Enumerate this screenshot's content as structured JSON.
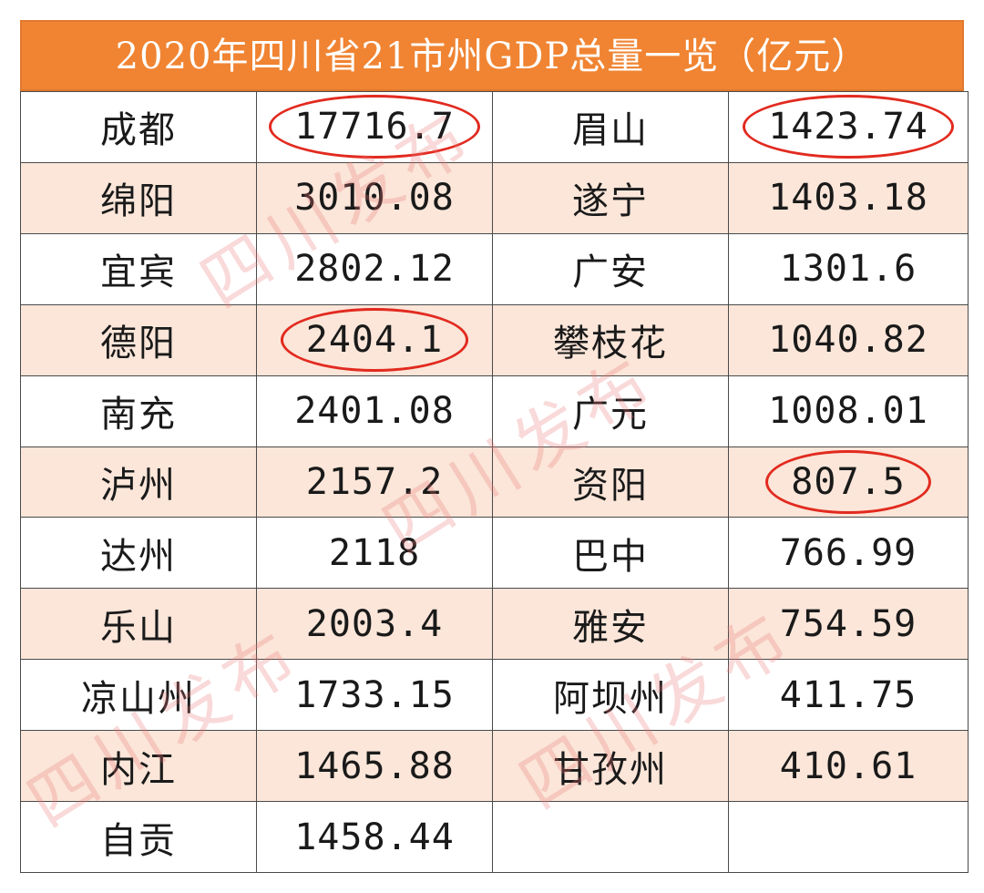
{
  "title": "2020年四川省21市州GDP总量一览（亿元）",
  "highlight_color": "#e22a1f",
  "header_color": "#f08432",
  "stripe_color": "#fbe6d9",
  "watermark": "四川发布",
  "rows": [
    {
      "n1": "成都",
      "v1": "17716.7",
      "c1": true,
      "n2": "眉山",
      "v2": "1423.74",
      "c2": true
    },
    {
      "n1": "绵阳",
      "v1": "3010.08",
      "c1": false,
      "n2": "遂宁",
      "v2": "1403.18",
      "c2": false
    },
    {
      "n1": "宜宾",
      "v1": "2802.12",
      "c1": false,
      "n2": "广安",
      "v2": "1301.6",
      "c2": false
    },
    {
      "n1": "德阳",
      "v1": "2404.1",
      "c1": true,
      "n2": "攀枝花",
      "v2": "1040.82",
      "c2": false
    },
    {
      "n1": "南充",
      "v1": "2401.08",
      "c1": false,
      "n2": "广元",
      "v2": "1008.01",
      "c2": false
    },
    {
      "n1": "泸州",
      "v1": "2157.2",
      "c1": false,
      "n2": "资阳",
      "v2": "807.5",
      "c2": true
    },
    {
      "n1": "达州",
      "v1": "2118",
      "c1": false,
      "n2": "巴中",
      "v2": "766.99",
      "c2": false
    },
    {
      "n1": "乐山",
      "v1": "2003.4",
      "c1": false,
      "n2": "雅安",
      "v2": "754.59",
      "c2": false
    },
    {
      "n1": "凉山州",
      "v1": "1733.15",
      "c1": false,
      "n2": "阿坝州",
      "v2": "411.75",
      "c2": false
    },
    {
      "n1": "内江",
      "v1": "1465.88",
      "c1": false,
      "n2": "甘孜州",
      "v2": "410.61",
      "c2": false
    },
    {
      "n1": "自贡",
      "v1": "1458.44",
      "c1": false,
      "n2": "",
      "v2": "",
      "c2": false
    }
  ]
}
